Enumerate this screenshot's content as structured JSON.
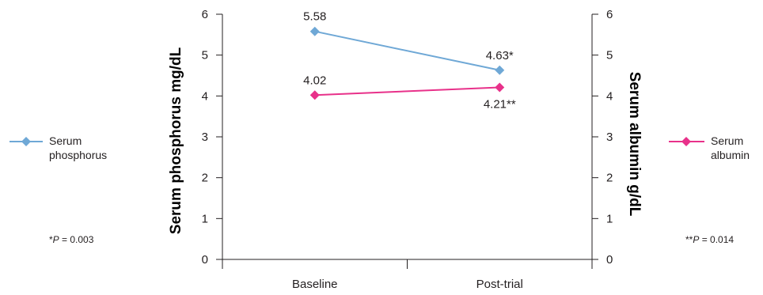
{
  "chart_data": {
    "type": "line",
    "categories": [
      "Baseline",
      "Post-trial"
    ],
    "series": [
      {
        "name": "Serum phosphorus",
        "axis": "left",
        "values": [
          5.58,
          4.63
        ],
        "labels": [
          "5.58",
          "4.63*"
        ],
        "color": "#6fa8d6"
      },
      {
        "name": "Serum albumin",
        "axis": "right",
        "values": [
          4.02,
          4.21
        ],
        "labels": [
          "4.02",
          "4.21**"
        ],
        "color": "#e8318a"
      }
    ],
    "y_left": {
      "label": "Serum phosphorus mg/dL",
      "ylim": [
        0,
        6
      ],
      "ticks": [
        "0",
        "1",
        "2",
        "3",
        "4",
        "5",
        "6"
      ]
    },
    "y_right": {
      "label": "Serum albumin g/dL",
      "ylim": [
        0,
        6
      ],
      "ticks": [
        "0",
        "1",
        "2",
        "3",
        "4",
        "5",
        "6"
      ]
    },
    "legend": {
      "left": {
        "line1": "Serum",
        "line2": "phosphorus"
      },
      "right": {
        "line1": "Serum",
        "line2": "albumin"
      }
    },
    "notes": {
      "left": {
        "prefix": "*",
        "p": "P",
        "rest": " = 0.003"
      },
      "right": {
        "prefix": "**",
        "p": "P",
        "rest": " = 0.014"
      }
    },
    "grid": false
  }
}
